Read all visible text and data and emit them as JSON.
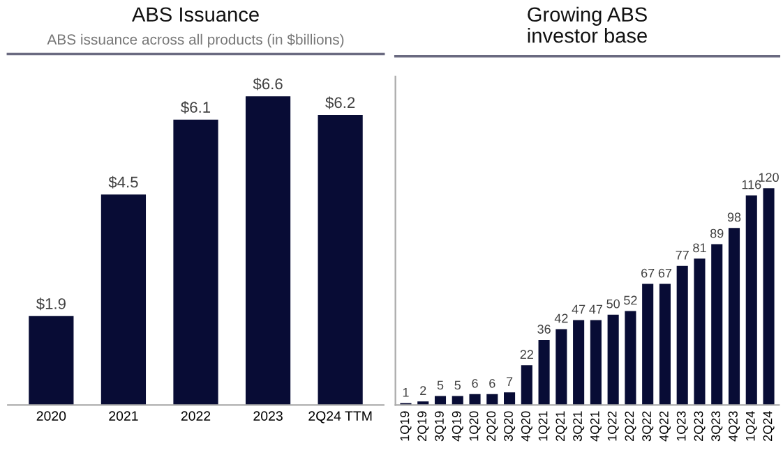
{
  "chart_data": [
    {
      "type": "bar",
      "title": "ABS Issuance",
      "subtitle": "ABS issuance across all products (in $billions)",
      "categories": [
        "2020",
        "2021",
        "2022",
        "2023",
        "2Q24 TTM"
      ],
      "values": [
        1.9,
        4.5,
        6.1,
        6.6,
        6.2
      ],
      "value_labels": [
        "$1.9",
        "$4.5",
        "$6.1",
        "$6.6",
        "$6.2"
      ],
      "color": "#080c35"
    },
    {
      "type": "bar",
      "title": "Growing ABS\ninvestor base",
      "categories": [
        "1Q19",
        "2Q19",
        "3Q19",
        "4Q19",
        "1Q20",
        "2Q20",
        "3Q20",
        "4Q20",
        "1Q21",
        "2Q21",
        "3Q21",
        "4Q21",
        "1Q22",
        "2Q22",
        "3Q22",
        "4Q22",
        "1Q23",
        "2Q23",
        "3Q23",
        "4Q23",
        "1Q24",
        "2Q24"
      ],
      "values": [
        1,
        2,
        5,
        5,
        6,
        6,
        7,
        22,
        36,
        42,
        47,
        47,
        50,
        52,
        67,
        67,
        77,
        81,
        89,
        98,
        116,
        120
      ],
      "data_labels": true,
      "color": "#080c35"
    }
  ]
}
